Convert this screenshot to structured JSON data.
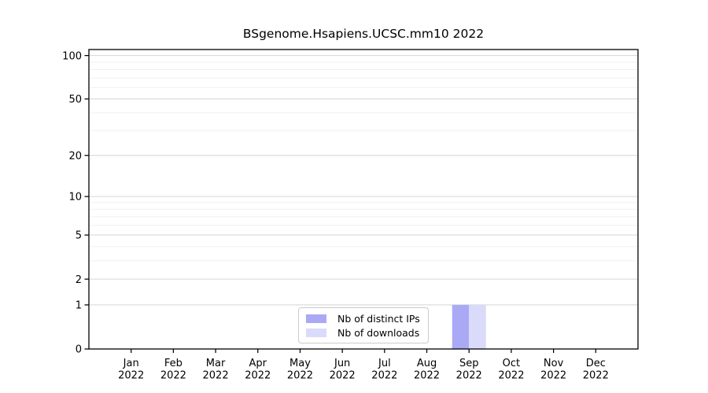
{
  "chart_data": {
    "type": "bar",
    "title": "BSgenome.Hsapiens.UCSC.mm10 2022",
    "categories": [
      "Jan 2022",
      "Feb 2022",
      "Mar 2022",
      "Apr 2022",
      "May 2022",
      "Jun 2022",
      "Jul 2022",
      "Aug 2022",
      "Sep 2022",
      "Oct 2022",
      "Nov 2022",
      "Dec 2022"
    ],
    "series": [
      {
        "name": "Nb of distinct IPs",
        "color": "#a9a9f6",
        "values": [
          0,
          0,
          0,
          0,
          0,
          0,
          0,
          0,
          1,
          0,
          0,
          0
        ]
      },
      {
        "name": "Nb of downloads",
        "color": "#dadafa",
        "values": [
          0,
          0,
          0,
          0,
          0,
          0,
          0,
          0,
          1,
          0,
          0,
          0
        ]
      }
    ],
    "xlabel": "",
    "ylabel": "",
    "yscale": "log1p",
    "ylim": [
      0,
      110
    ],
    "y_major_ticks": [
      0,
      1,
      2,
      5,
      10,
      20,
      50,
      100
    ],
    "y_minor_ticks": [
      3,
      4,
      6,
      7,
      8,
      9,
      30,
      40,
      60,
      70,
      80,
      90
    ],
    "grid": "horizontal",
    "legend_position": "bottom-center-inside",
    "colors": {
      "axis": "#000000",
      "tick_label": "#000000",
      "major_gridline": "#d4d4d4",
      "minor_gridline": "#f0f0f0"
    }
  }
}
